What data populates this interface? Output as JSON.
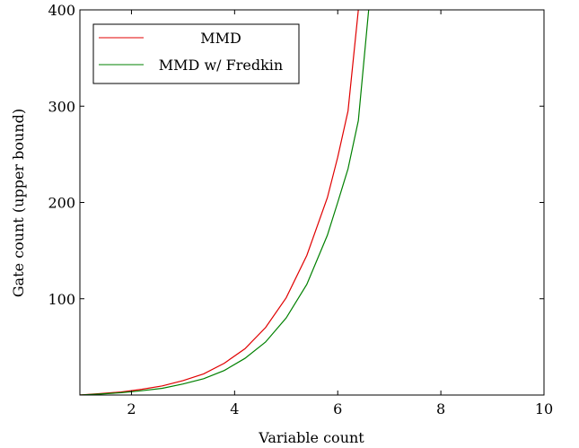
{
  "chart_data": {
    "type": "line",
    "title": "",
    "xlabel": "Variable count",
    "ylabel": "Gate count (upper bound)",
    "xlim": [
      1,
      10
    ],
    "ylim": [
      0,
      400
    ],
    "xticks": [
      2,
      4,
      6,
      8,
      10
    ],
    "yticks": [
      100,
      200,
      300,
      400
    ],
    "grid": false,
    "legend_position": "top-left",
    "series": [
      {
        "name": "MMD",
        "color": "#e00000",
        "x": [
          1.0,
          1.4,
          1.8,
          2.2,
          2.6,
          3.0,
          3.4,
          3.8,
          4.2,
          4.6,
          5.0,
          5.4,
          5.8,
          6.0,
          6.2,
          6.4
        ],
        "y": [
          0,
          1.5,
          3.2,
          6,
          9.5,
          15,
          22,
          33,
          48,
          70,
          101,
          145,
          205,
          247,
          295,
          400
        ]
      },
      {
        "name": "MMD w/ Fredkin",
        "color": "#008000",
        "x": [
          1.0,
          1.4,
          1.8,
          2.2,
          2.6,
          3.0,
          3.4,
          3.8,
          4.2,
          4.6,
          5.0,
          5.4,
          5.8,
          6.0,
          6.2,
          6.4,
          6.6
        ],
        "y": [
          0,
          1.0,
          2.4,
          4.5,
          7.0,
          11.5,
          17,
          25.5,
          38,
          55,
          80,
          115,
          166,
          200,
          235,
          285,
          400
        ]
      }
    ]
  }
}
